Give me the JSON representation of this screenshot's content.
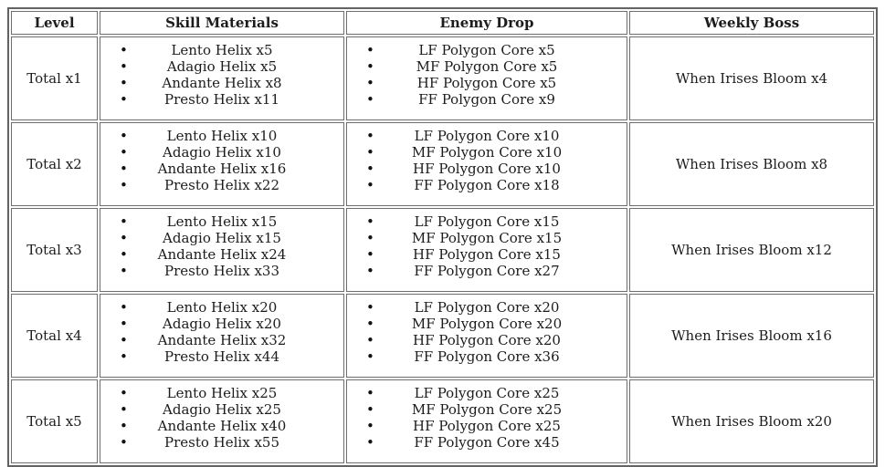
{
  "icons": {
    "bullet": "•"
  },
  "colors": {
    "background": "#ffffff",
    "text": "#1c1c1c",
    "border_outer": "#636363",
    "border_cell": "#6e6e6e"
  },
  "table": {
    "headers": [
      "Level",
      "Skill Materials",
      "Enemy Drop",
      "Weekly Boss"
    ],
    "rows": [
      {
        "level": "Total x1",
        "skill_materials": [
          "Lento Helix x5",
          "Adagio Helix x5",
          "Andante Helix x8",
          "Presto Helix x11"
        ],
        "enemy_drop": [
          "LF Polygon Core x5",
          "MF Polygon Core x5",
          "HF Polygon Core x5",
          "FF Polygon Core x9"
        ],
        "weekly_boss": "When Irises Bloom x4"
      },
      {
        "level": "Total x2",
        "skill_materials": [
          "Lento Helix x10",
          "Adagio Helix x10",
          "Andante Helix x16",
          "Presto Helix x22"
        ],
        "enemy_drop": [
          "LF Polygon Core x10",
          "MF Polygon Core x10",
          "HF Polygon Core x10",
          "FF Polygon Core x18"
        ],
        "weekly_boss": "When Irises Bloom x8"
      },
      {
        "level": "Total x3",
        "skill_materials": [
          "Lento Helix x15",
          "Adagio Helix x15",
          "Andante Helix x24",
          "Presto Helix x33"
        ],
        "enemy_drop": [
          "LF Polygon Core x15",
          "MF Polygon Core x15",
          "HF Polygon Core x15",
          "FF Polygon Core x27"
        ],
        "weekly_boss": "When Irises Bloom x12"
      },
      {
        "level": "Total x4",
        "skill_materials": [
          "Lento Helix x20",
          "Adagio Helix x20",
          "Andante Helix x32",
          "Presto Helix x44"
        ],
        "enemy_drop": [
          "LF Polygon Core x20",
          "MF Polygon Core x20",
          "HF Polygon Core x20",
          "FF Polygon Core x36"
        ],
        "weekly_boss": "When Irises Bloom x16"
      },
      {
        "level": "Total x5",
        "skill_materials": [
          "Lento Helix x25",
          "Adagio Helix x25",
          "Andante Helix x40",
          "Presto Helix x55"
        ],
        "enemy_drop": [
          "LF Polygon Core x25",
          "MF Polygon Core x25",
          "HF Polygon Core x25",
          "FF Polygon Core x45"
        ],
        "weekly_boss": "When Irises Bloom x20"
      }
    ]
  }
}
